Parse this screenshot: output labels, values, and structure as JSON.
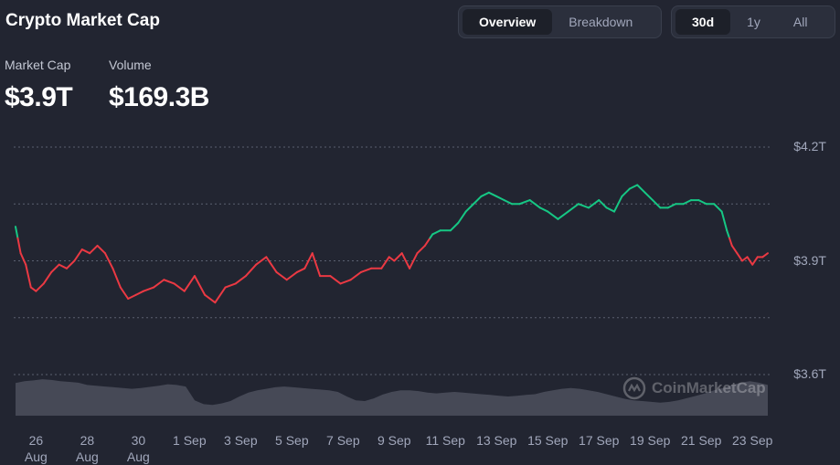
{
  "header": {
    "title": "Crypto Market Cap"
  },
  "view_tabs": [
    {
      "label": "Overview",
      "active": true
    },
    {
      "label": "Breakdown",
      "active": false
    }
  ],
  "range_tabs": [
    {
      "label": "30d",
      "active": true
    },
    {
      "label": "1y",
      "active": false
    },
    {
      "label": "All",
      "active": false
    }
  ],
  "stats": {
    "market_cap": {
      "label": "Market Cap",
      "value": "$3.9T"
    },
    "volume": {
      "label": "Volume",
      "value": "$169.3B"
    }
  },
  "watermark": "CoinMarketCap",
  "colors": {
    "up": "#16c784",
    "down": "#ea3943",
    "background": "#222531",
    "volume": "#4a4e5b"
  },
  "chart_data": {
    "type": "line",
    "y_unit": "T",
    "y_ticks": [
      {
        "value": 4.2,
        "label": "$4.2T"
      },
      {
        "value": 3.9,
        "label": "$3.9T"
      },
      {
        "value": 3.6,
        "label": "$3.6T"
      }
    ],
    "ylim": [
      3.6,
      4.2
    ],
    "x_ticks": [
      {
        "t": 1,
        "label": [
          "26",
          "Aug"
        ]
      },
      {
        "t": 3,
        "label": [
          "28",
          "Aug"
        ]
      },
      {
        "t": 5,
        "label": [
          "30",
          "Aug"
        ]
      },
      {
        "t": 7,
        "label": [
          "1 Sep"
        ]
      },
      {
        "t": 9,
        "label": [
          "3 Sep"
        ]
      },
      {
        "t": 11,
        "label": [
          "5 Sep"
        ]
      },
      {
        "t": 13,
        "label": [
          "7 Sep"
        ]
      },
      {
        "t": 15,
        "label": [
          "9 Sep"
        ]
      },
      {
        "t": 17,
        "label": [
          "11 Sep"
        ]
      },
      {
        "t": 19,
        "label": [
          "13 Sep"
        ]
      },
      {
        "t": 21,
        "label": [
          "15 Sep"
        ]
      },
      {
        "t": 23,
        "label": [
          "17 Sep"
        ]
      },
      {
        "t": 25,
        "label": [
          "19 Sep"
        ]
      },
      {
        "t": 27,
        "label": [
          "21 Sep"
        ]
      },
      {
        "t": 29,
        "label": [
          "23 Sep"
        ]
      }
    ],
    "xlim": [
      0.2,
      29.6
    ],
    "reference_value": 3.96,
    "series": [
      {
        "values": [
          [
            0.2,
            3.99
          ],
          [
            0.4,
            3.92
          ],
          [
            0.6,
            3.89
          ],
          [
            0.8,
            3.83
          ],
          [
            1.0,
            3.82
          ],
          [
            1.3,
            3.84
          ],
          [
            1.6,
            3.87
          ],
          [
            1.9,
            3.89
          ],
          [
            2.2,
            3.88
          ],
          [
            2.5,
            3.9
          ],
          [
            2.8,
            3.93
          ],
          [
            3.1,
            3.92
          ],
          [
            3.4,
            3.94
          ],
          [
            3.7,
            3.92
          ],
          [
            4.0,
            3.88
          ],
          [
            4.3,
            3.83
          ],
          [
            4.6,
            3.8
          ],
          [
            4.9,
            3.81
          ],
          [
            5.2,
            3.82
          ],
          [
            5.6,
            3.83
          ],
          [
            6.0,
            3.85
          ],
          [
            6.4,
            3.84
          ],
          [
            6.8,
            3.82
          ],
          [
            7.2,
            3.86
          ],
          [
            7.6,
            3.81
          ],
          [
            8.0,
            3.79
          ],
          [
            8.4,
            3.83
          ],
          [
            8.8,
            3.84
          ],
          [
            9.2,
            3.86
          ],
          [
            9.6,
            3.89
          ],
          [
            10.0,
            3.91
          ],
          [
            10.4,
            3.87
          ],
          [
            10.8,
            3.85
          ],
          [
            11.2,
            3.87
          ],
          [
            11.5,
            3.88
          ],
          [
            11.8,
            3.92
          ],
          [
            12.1,
            3.86
          ],
          [
            12.5,
            3.86
          ],
          [
            12.9,
            3.84
          ],
          [
            13.3,
            3.85
          ],
          [
            13.7,
            3.87
          ],
          [
            14.1,
            3.88
          ],
          [
            14.5,
            3.88
          ],
          [
            14.8,
            3.91
          ],
          [
            15.0,
            3.9
          ],
          [
            15.3,
            3.92
          ],
          [
            15.6,
            3.88
          ],
          [
            15.9,
            3.92
          ],
          [
            16.2,
            3.94
          ],
          [
            16.5,
            3.97
          ],
          [
            16.8,
            3.98
          ],
          [
            17.2,
            3.98
          ],
          [
            17.5,
            4.0
          ],
          [
            17.8,
            4.03
          ],
          [
            18.1,
            4.05
          ],
          [
            18.4,
            4.07
          ],
          [
            18.7,
            4.08
          ],
          [
            19.0,
            4.07
          ],
          [
            19.3,
            4.06
          ],
          [
            19.6,
            4.05
          ],
          [
            19.9,
            4.05
          ],
          [
            20.3,
            4.06
          ],
          [
            20.7,
            4.04
          ],
          [
            21.0,
            4.03
          ],
          [
            21.4,
            4.01
          ],
          [
            21.8,
            4.03
          ],
          [
            22.2,
            4.05
          ],
          [
            22.6,
            4.04
          ],
          [
            23.0,
            4.06
          ],
          [
            23.3,
            4.04
          ],
          [
            23.6,
            4.03
          ],
          [
            23.9,
            4.07
          ],
          [
            24.2,
            4.09
          ],
          [
            24.5,
            4.1
          ],
          [
            24.8,
            4.08
          ],
          [
            25.1,
            4.06
          ],
          [
            25.4,
            4.04
          ],
          [
            25.7,
            4.04
          ],
          [
            26.0,
            4.05
          ],
          [
            26.3,
            4.05
          ],
          [
            26.6,
            4.06
          ],
          [
            26.9,
            4.06
          ],
          [
            27.2,
            4.05
          ],
          [
            27.5,
            4.05
          ],
          [
            27.8,
            4.03
          ],
          [
            28.0,
            3.98
          ],
          [
            28.2,
            3.94
          ],
          [
            28.4,
            3.92
          ],
          [
            28.6,
            3.9
          ],
          [
            28.8,
            3.91
          ],
          [
            29.0,
            3.89
          ],
          [
            29.2,
            3.91
          ],
          [
            29.4,
            3.91
          ],
          [
            29.6,
            3.92
          ]
        ]
      }
    ],
    "volume_relative": [
      0.85,
      0.9,
      0.92,
      0.95,
      0.93,
      0.9,
      0.88,
      0.86,
      0.8,
      0.78,
      0.76,
      0.74,
      0.72,
      0.7,
      0.72,
      0.75,
      0.78,
      0.82,
      0.8,
      0.76,
      0.4,
      0.3,
      0.28,
      0.32,
      0.38,
      0.5,
      0.6,
      0.66,
      0.7,
      0.74,
      0.76,
      0.74,
      0.72,
      0.7,
      0.68,
      0.66,
      0.62,
      0.5,
      0.4,
      0.38,
      0.45,
      0.55,
      0.62,
      0.66,
      0.66,
      0.64,
      0.6,
      0.58,
      0.6,
      0.62,
      0.6,
      0.58,
      0.56,
      0.54,
      0.52,
      0.5,
      0.52,
      0.54,
      0.56,
      0.62,
      0.66,
      0.7,
      0.72,
      0.7,
      0.66,
      0.62,
      0.56,
      0.5,
      0.44,
      0.4,
      0.38,
      0.36,
      0.34,
      0.36,
      0.4,
      0.46,
      0.52,
      0.58,
      0.66,
      0.72,
      0.8,
      0.86,
      0.9,
      0.86,
      0.8
    ]
  }
}
